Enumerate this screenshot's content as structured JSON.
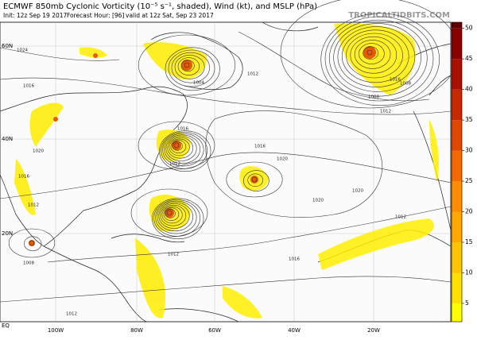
{
  "header": {
    "title": "ECMWF 850mb Cyclonic Vorticity (10⁻⁵ s⁻¹, shaded), Wind (kt), and MSLP (hPa)",
    "init": "Init: 12z Sep 19 2017",
    "forecast_hour": "Forecast Hour: [96]",
    "valid": "valid at 12z Sat, Sep 23 2017",
    "site": "TROPICALTIDBITS.COM"
  },
  "map": {
    "lat_labels": [
      "60N",
      "40N",
      "20N",
      "EQ"
    ],
    "lon_labels": [
      "100W",
      "80W",
      "60W",
      "40W",
      "20W"
    ],
    "isobar_labels": [
      "1024",
      "1016",
      "1020",
      "1016",
      "1012",
      "1008",
      "1004",
      "1012",
      "1016",
      "1012",
      "1020",
      "1020",
      "1016",
      "1008",
      "1012",
      "1016",
      "1008",
      "1012",
      "1012",
      "1020",
      "1016",
      "1012"
    ]
  },
  "colorbar": {
    "lim": [
      2,
      51
    ],
    "ticks": [
      5,
      10,
      15,
      20,
      25,
      30,
      35,
      40,
      45,
      50
    ],
    "colors": [
      "#ffff00",
      "#ffe000",
      "#ffc400",
      "#ffa800",
      "#ff8c00",
      "#f56a00",
      "#e04800",
      "#c82800",
      "#a81000",
      "#880000",
      "#600000"
    ]
  }
}
